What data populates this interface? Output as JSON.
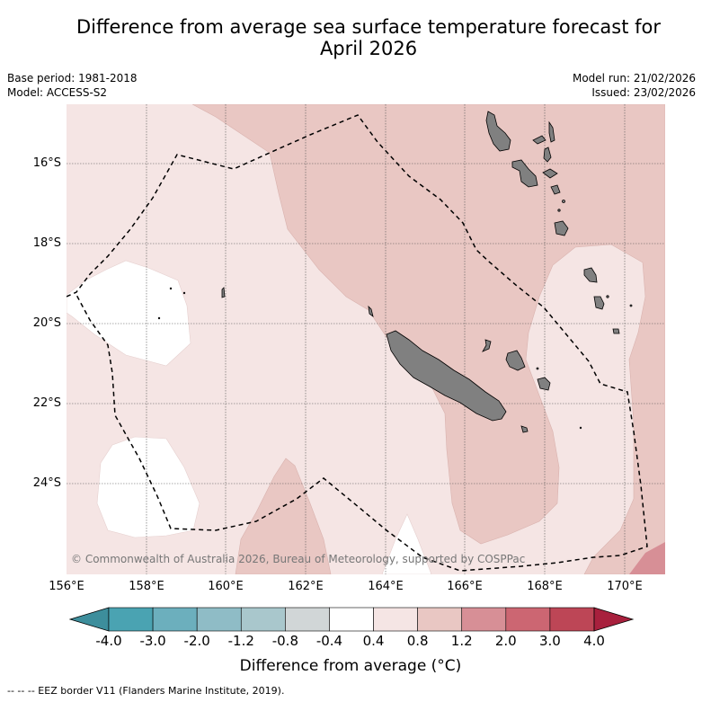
{
  "title_line1": "Difference from average sea surface temperature forecast for",
  "title_line2": "April 2026",
  "base_period": "Base period: 1981-2018",
  "model": "Model: ACCESS-S2",
  "model_run": "Model run: 21/02/2026",
  "issued": "Issued: 23/02/2026",
  "lat_labels": [
    "16°S",
    "18°S",
    "20°S",
    "22°S",
    "24°S"
  ],
  "lon_labels": [
    "156°E",
    "158°E",
    "160°E",
    "162°E",
    "164°E",
    "166°E",
    "168°E",
    "170°E"
  ],
  "colorbar": {
    "ticks": [
      "-4.0",
      "-3.0",
      "-2.0",
      "-1.2",
      "-0.8",
      "-0.4",
      "0.4",
      "0.8",
      "1.2",
      "2.0",
      "3.0",
      "4.0"
    ],
    "colors": [
      "#3d8e9c",
      "#4aa3b2",
      "#6cafbd",
      "#8fbcc6",
      "#a9c7cc",
      "#d1d6d7",
      "#ffffff",
      "#f5e5e4",
      "#e9c7c3",
      "#d78f96",
      "#cc6672",
      "#bd4656",
      "#a8203d"
    ],
    "title": "Difference from average (°C)"
  },
  "copyright": "© Commonwealth of Australia 2026, Bureau of Meteorology, supported by COSPPac",
  "legend_eez": "-- -- -- EEZ border V11 (Flanders Marine Institute, 2019)."
}
